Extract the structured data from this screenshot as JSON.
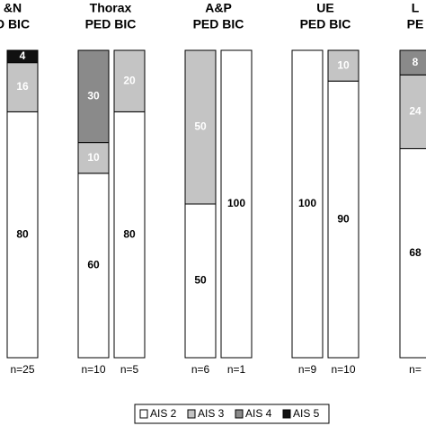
{
  "chart_data": {
    "type": "bar",
    "stacked": true,
    "groups": [
      {
        "title": [
          "&N",
          "D BIC"
        ]
      },
      {
        "title": [
          "Thorax",
          "PED BIC"
        ]
      },
      {
        "title": [
          "A&P",
          "PED BIC"
        ]
      },
      {
        "title": [
          "UE",
          "PED BIC"
        ]
      },
      {
        "title": [
          "L",
          "PE"
        ]
      }
    ],
    "categories": [
      "n=25",
      "n=10",
      "n=5",
      "n=6",
      "n=1",
      "n=9",
      "n=10",
      "n="
    ],
    "series": [
      {
        "name": "AIS 2",
        "color": "#ffffff",
        "label_color": "#000000",
        "values": [
          80,
          60,
          80,
          50,
          100,
          100,
          90,
          68
        ]
      },
      {
        "name": "AIS 3",
        "color": "#c4c4c4",
        "label_color": "#ffffff",
        "values": [
          16,
          10,
          20,
          50,
          null,
          null,
          10,
          24
        ]
      },
      {
        "name": "AIS 4",
        "color": "#8a8a8a",
        "label_color": "#ffffff",
        "values": [
          null,
          30,
          null,
          null,
          null,
          null,
          null,
          8
        ]
      },
      {
        "name": "AIS 5",
        "color": "#111111",
        "label_color": "#ffffff",
        "values": [
          4,
          null,
          null,
          null,
          null,
          null,
          null,
          null
        ]
      }
    ],
    "ylim": [
      0,
      100
    ]
  }
}
